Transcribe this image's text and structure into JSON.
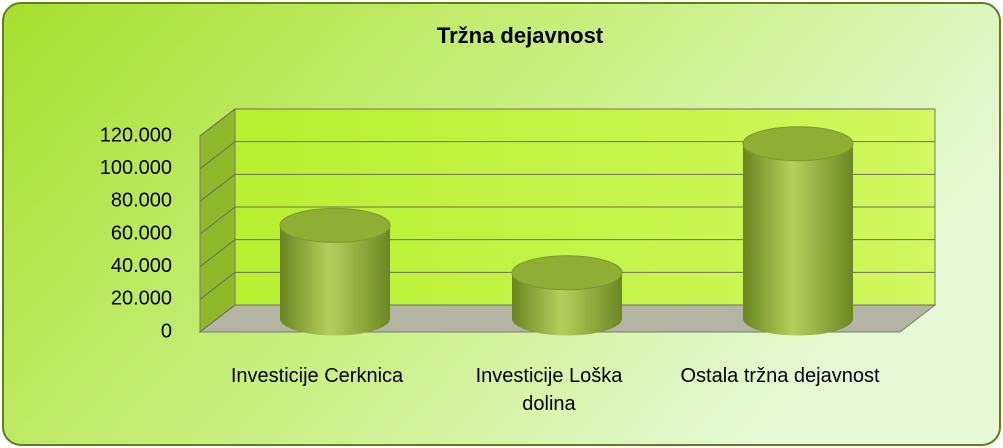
{
  "chart_data": {
    "type": "bar",
    "title": "Tržna dejavnost",
    "categories": [
      "Investicije Cerknica",
      "Investicije Loška dolina",
      "Ostala tržna dejavnost"
    ],
    "values": [
      57000,
      28000,
      107000
    ],
    "color": "#8fae33",
    "ylim": [
      0,
      120000
    ],
    "yticks": [
      0,
      {
        "value": 20000,
        "label": "20.000"
      },
      {
        "value": 40000,
        "label": "40.000"
      },
      {
        "value": 60000,
        "label": "60.000"
      },
      {
        "value": 80000,
        "label": "80.000"
      },
      {
        "value": 100000,
        "label": "100.000"
      },
      {
        "value": 120000,
        "label": "120.000"
      }
    ],
    "grid": true
  }
}
